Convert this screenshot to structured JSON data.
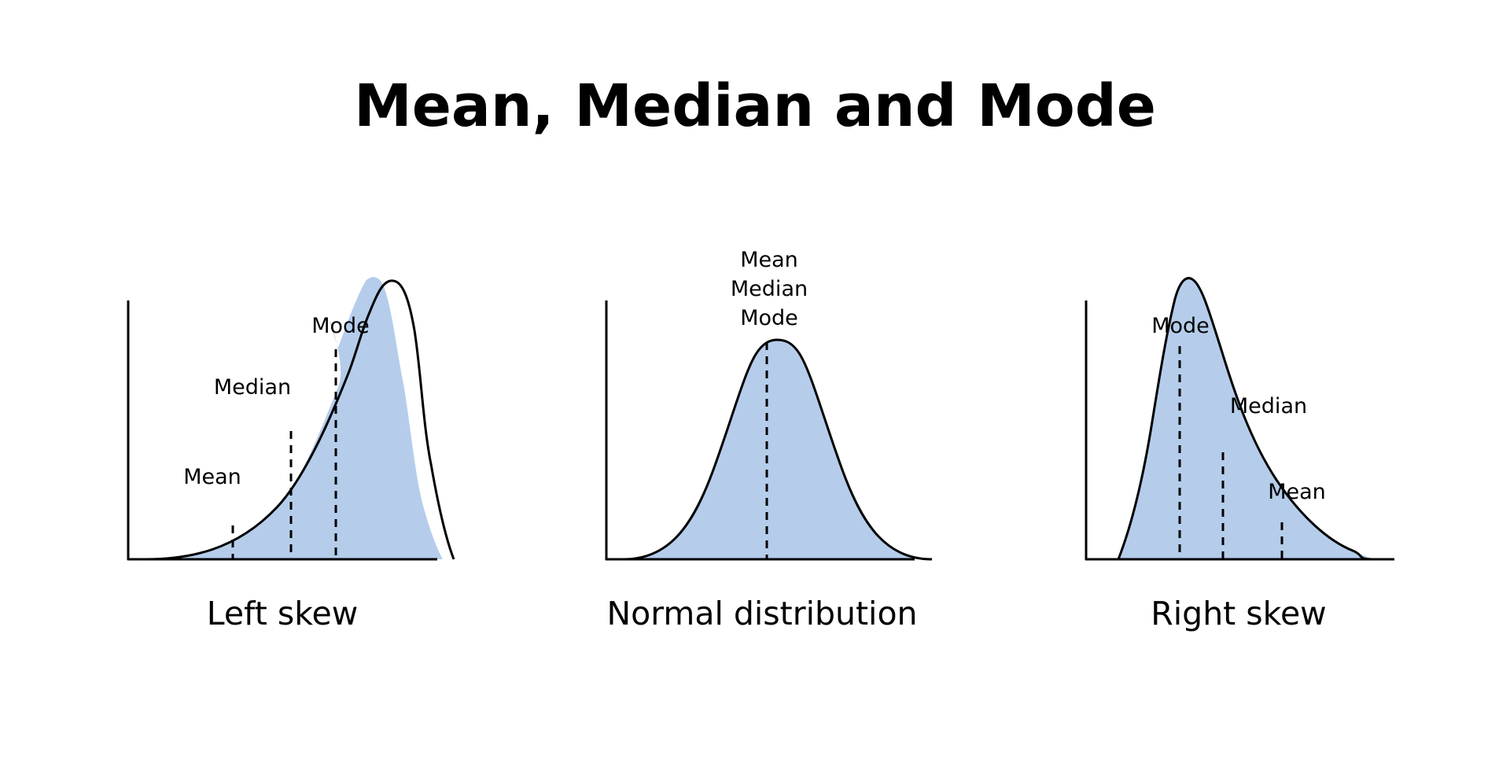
{
  "title": "Mean, Median and Mode",
  "colors": {
    "fill": "#b5cdeb",
    "stroke": "#000000",
    "background": "#ffffff"
  },
  "panels": [
    {
      "id": "left-skew",
      "caption": "Left skew",
      "labels": {
        "mean": "Mean",
        "median": "Median",
        "mode": "Mode"
      }
    },
    {
      "id": "normal",
      "caption": "Normal distribution",
      "labels": {
        "mean": "Mean",
        "median": "Median",
        "mode": "Mode"
      }
    },
    {
      "id": "right-skew",
      "caption": "Right skew",
      "labels": {
        "mean": "Mean",
        "median": "Median",
        "mode": "Mode"
      }
    }
  ]
}
